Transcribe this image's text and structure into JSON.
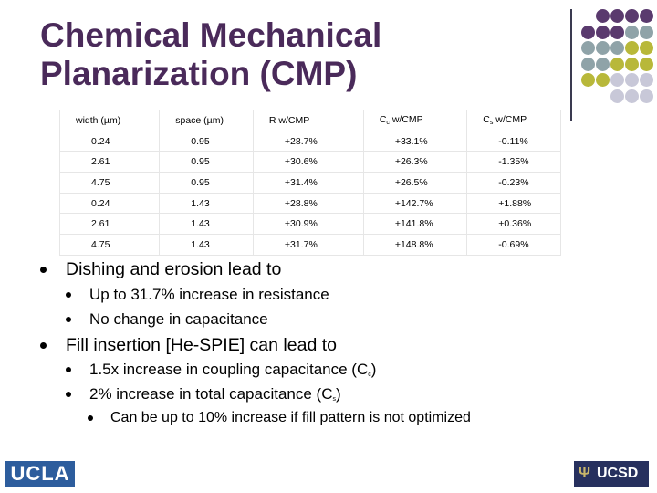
{
  "slide": {
    "title_line1": "Chemical Mechanical",
    "title_line2": "Planarization (CMP)"
  },
  "table": {
    "headers": {
      "width": "width (µm)",
      "space": "space (µm)",
      "r": "R w/CMP",
      "cc_c": "C",
      "cc_sub": "c",
      "cc_rest": " w/CMP",
      "cs_c": "C",
      "cs_sub": "s",
      "cs_rest": " w/CMP"
    },
    "rows": [
      [
        "0.24",
        "0.95",
        "+28.7%",
        "+33.1%",
        "-0.11%"
      ],
      [
        "2.61",
        "0.95",
        "+30.6%",
        "+26.3%",
        "-1.35%"
      ],
      [
        "4.75",
        "0.95",
        "+31.4%",
        "+26.5%",
        "-0.23%"
      ],
      [
        "0.24",
        "1.43",
        "+28.8%",
        "+142.7%",
        "+1.88%"
      ],
      [
        "2.61",
        "1.43",
        "+30.9%",
        "+141.8%",
        "+0.36%"
      ],
      [
        "4.75",
        "1.43",
        "+31.7%",
        "+148.8%",
        "-0.69%"
      ]
    ]
  },
  "bullets": {
    "b1": "Dishing and erosion lead to",
    "b1_sub1": "Up to 31.7% increase in resistance",
    "b1_sub2": "No change in capacitance",
    "b2": "Fill insertion [He-SPIE] can lead to",
    "b2_sub1_pre": "1.5x increase in coupling capacitance (C",
    "b2_sub1_sub": "c",
    "b2_sub1_post": ")",
    "b2_sub2_pre": "2% increase in total capacitance (C",
    "b2_sub2_sub": "s",
    "b2_sub2_post": ")",
    "b2_sub2_sub1": "Can be up to 10% increase if fill pattern is not optimized"
  },
  "logos": {
    "left": "UCLA",
    "right": "UCSD",
    "right_icon": "trident-icon"
  },
  "colors": {
    "title": "#4a2a5a",
    "dot_purple": "#5a3a6e",
    "dot_teal": "#8fa3a8",
    "dot_olive": "#b8b83a",
    "dot_lavender": "#c8c8d8",
    "ucla_blue": "#2d5d9d",
    "ucsd_navy": "#27305e"
  }
}
